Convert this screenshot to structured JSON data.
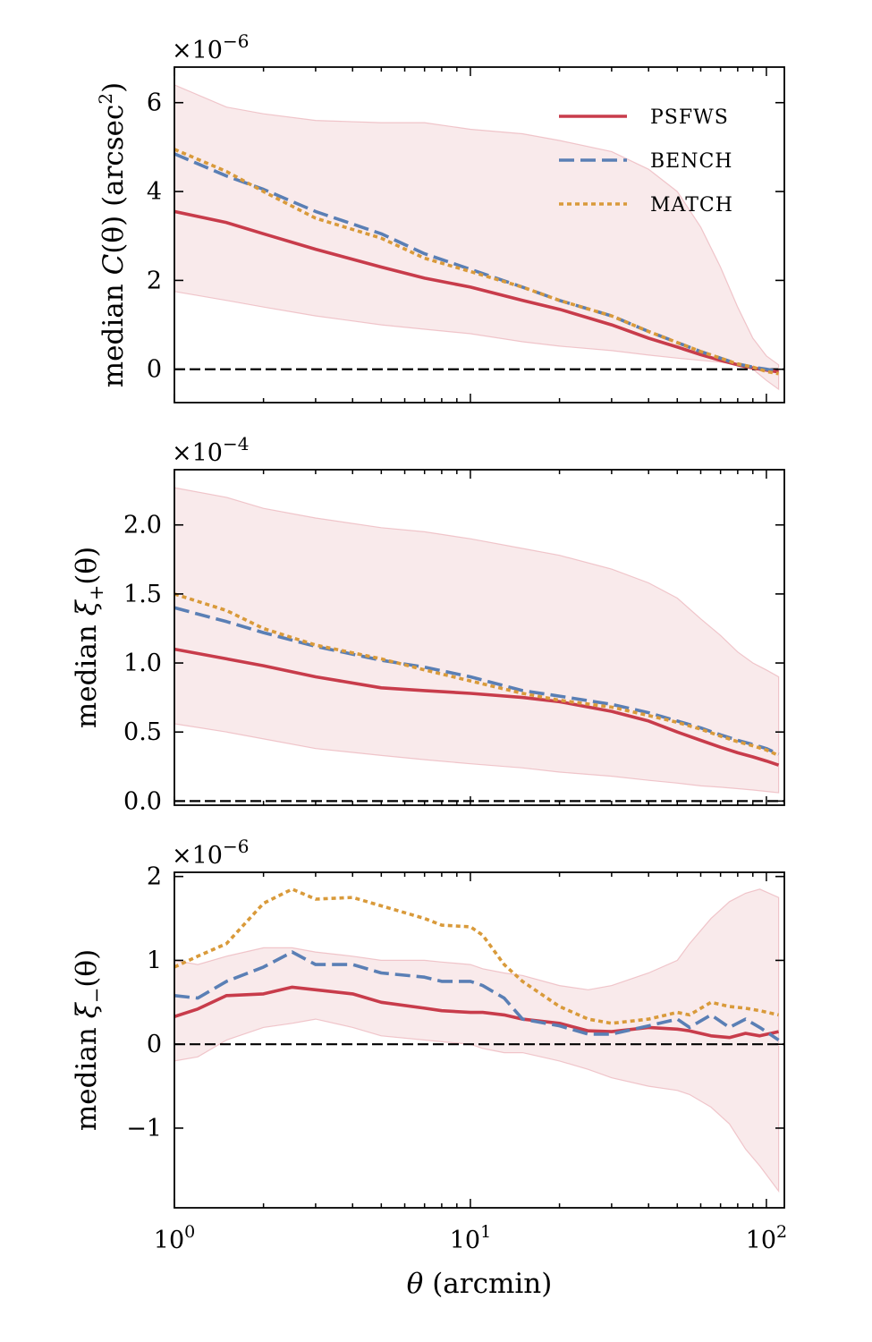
{
  "chart_data": [
    {
      "type": "line",
      "ylabel_parts": [
        "median ",
        "C",
        "(θ) (arcsec",
        "2",
        ")"
      ],
      "multiplier": {
        "base": "×10",
        "exp": "−6"
      },
      "ylim": [
        -0.75,
        6.8
      ],
      "yticks": [
        0,
        2,
        4,
        6
      ],
      "ytick_labels": [
        "0",
        "2",
        "4",
        "6"
      ],
      "legend": {
        "position": "top-right",
        "entries": [
          "PSFWS",
          "BENCH",
          "MATCH"
        ]
      },
      "x": [
        1.0,
        1.5,
        2.0,
        3.0,
        5.0,
        7.0,
        10.0,
        15.0,
        20.0,
        30.0,
        40.0,
        50.0,
        60.0,
        70.0,
        80.0,
        90.0,
        100.0,
        110.0
      ],
      "band": {
        "upper": [
          6.4,
          5.9,
          5.75,
          5.6,
          5.55,
          5.55,
          5.4,
          5.3,
          5.15,
          4.9,
          4.5,
          4.0,
          3.2,
          2.3,
          1.4,
          0.7,
          0.3,
          0.1
        ],
        "lower": [
          1.75,
          1.55,
          1.4,
          1.2,
          1.0,
          0.9,
          0.8,
          0.62,
          0.52,
          0.42,
          0.32,
          0.25,
          0.2,
          0.16,
          0.1,
          0.0,
          -0.25,
          -0.45
        ]
      },
      "series": [
        {
          "name": "PSFWS",
          "color": "#c83c4b",
          "dash": "solid",
          "values": [
            3.55,
            3.3,
            3.05,
            2.7,
            2.3,
            2.05,
            1.85,
            1.55,
            1.35,
            1.0,
            0.7,
            0.5,
            0.33,
            0.2,
            0.1,
            0.03,
            -0.02,
            -0.06
          ]
        },
        {
          "name": "BENCH",
          "color": "#5a7fb5",
          "dash": "dashed",
          "values": [
            4.85,
            4.35,
            4.05,
            3.55,
            3.05,
            2.6,
            2.25,
            1.85,
            1.55,
            1.2,
            0.85,
            0.6,
            0.4,
            0.25,
            0.12,
            0.05,
            0.0,
            -0.05
          ]
        },
        {
          "name": "MATCH",
          "color": "#d99a3a",
          "dash": "dotted",
          "values": [
            4.95,
            4.45,
            4.0,
            3.4,
            2.95,
            2.5,
            2.2,
            1.85,
            1.55,
            1.2,
            0.85,
            0.6,
            0.4,
            0.25,
            0.12,
            0.05,
            -0.05,
            -0.1
          ]
        }
      ]
    },
    {
      "type": "line",
      "ylabel_parts": [
        "median ",
        "ξ",
        "+",
        "(θ)"
      ],
      "multiplier": {
        "base": "×10",
        "exp": "−4"
      },
      "ylim": [
        -0.03,
        2.4
      ],
      "yticks": [
        0,
        0.5,
        1.0,
        1.5,
        2.0
      ],
      "ytick_labels": [
        "0.0",
        "0.5",
        "1.0",
        "1.5",
        "2.0"
      ],
      "x": [
        1.0,
        1.5,
        2.0,
        3.0,
        5.0,
        7.0,
        10.0,
        15.0,
        20.0,
        30.0,
        40.0,
        50.0,
        60.0,
        70.0,
        80.0,
        90.0,
        100.0,
        110.0
      ],
      "band": {
        "upper": [
          2.27,
          2.2,
          2.12,
          2.05,
          1.98,
          1.95,
          1.9,
          1.83,
          1.78,
          1.68,
          1.58,
          1.47,
          1.32,
          1.2,
          1.08,
          1.0,
          0.95,
          0.9
        ],
        "lower": [
          0.56,
          0.5,
          0.45,
          0.38,
          0.33,
          0.3,
          0.27,
          0.24,
          0.21,
          0.18,
          0.15,
          0.13,
          0.11,
          0.1,
          0.09,
          0.08,
          0.07,
          0.06
        ]
      },
      "series": [
        {
          "name": "PSFWS",
          "color": "#c83c4b",
          "dash": "solid",
          "values": [
            1.1,
            1.03,
            0.98,
            0.9,
            0.82,
            0.8,
            0.78,
            0.75,
            0.72,
            0.65,
            0.58,
            0.5,
            0.44,
            0.39,
            0.35,
            0.32,
            0.29,
            0.26
          ]
        },
        {
          "name": "BENCH",
          "color": "#5a7fb5",
          "dash": "dashed",
          "values": [
            1.4,
            1.3,
            1.22,
            1.12,
            1.02,
            0.97,
            0.9,
            0.8,
            0.76,
            0.7,
            0.64,
            0.58,
            0.53,
            0.48,
            0.44,
            0.41,
            0.38,
            0.34
          ]
        },
        {
          "name": "MATCH",
          "color": "#d99a3a",
          "dash": "dotted",
          "values": [
            1.5,
            1.38,
            1.25,
            1.13,
            1.03,
            0.95,
            0.87,
            0.78,
            0.73,
            0.68,
            0.62,
            0.57,
            0.52,
            0.47,
            0.43,
            0.4,
            0.37,
            0.33
          ]
        }
      ]
    },
    {
      "type": "line",
      "ylabel_parts": [
        "median ",
        "ξ",
        "−",
        "(θ)"
      ],
      "multiplier": {
        "base": "×10",
        "exp": "−6"
      },
      "ylim": [
        -1.95,
        2.05
      ],
      "yticks": [
        -1,
        0,
        1,
        2
      ],
      "ytick_labels": [
        "−1",
        "0",
        "1",
        "2"
      ],
      "xlabel_parts": [
        "θ",
        " (arcmin)"
      ],
      "xticks": [
        1,
        10,
        100
      ],
      "xtick_labels": [
        {
          "base": "10",
          "exp": "0"
        },
        {
          "base": "10",
          "exp": "1"
        },
        {
          "base": "10",
          "exp": "2"
        }
      ],
      "x": [
        1.0,
        1.2,
        1.5,
        2.0,
        2.5,
        3.0,
        4.0,
        5.0,
        7.0,
        8.0,
        10.0,
        11.0,
        13.0,
        15.0,
        20.0,
        25.0,
        30.0,
        40.0,
        50.0,
        55.0,
        65.0,
        75.0,
        85.0,
        95.0,
        110.0
      ],
      "band": {
        "upper": [
          1.0,
          0.95,
          1.05,
          1.15,
          1.15,
          1.1,
          1.05,
          1.0,
          1.0,
          0.98,
          0.95,
          0.9,
          0.85,
          0.82,
          0.7,
          0.65,
          0.7,
          0.85,
          1.0,
          1.2,
          1.5,
          1.7,
          1.8,
          1.85,
          1.75
        ],
        "lower": [
          -0.2,
          -0.15,
          0.05,
          0.2,
          0.25,
          0.3,
          0.2,
          0.1,
          0.05,
          0.03,
          0.0,
          -0.05,
          -0.1,
          -0.1,
          -0.2,
          -0.3,
          -0.4,
          -0.5,
          -0.55,
          -0.6,
          -0.75,
          -0.95,
          -1.25,
          -1.45,
          -1.75
        ]
      },
      "series": [
        {
          "name": "PSFWS",
          "color": "#c83c4b",
          "dash": "solid",
          "values": [
            0.33,
            0.42,
            0.58,
            0.6,
            0.68,
            0.65,
            0.6,
            0.5,
            0.43,
            0.4,
            0.38,
            0.38,
            0.35,
            0.3,
            0.25,
            0.16,
            0.15,
            0.2,
            0.18,
            0.16,
            0.1,
            0.08,
            0.13,
            0.1,
            0.15
          ]
        },
        {
          "name": "BENCH",
          "color": "#5a7fb5",
          "dash": "dashed",
          "values": [
            0.58,
            0.55,
            0.75,
            0.92,
            1.1,
            0.95,
            0.95,
            0.85,
            0.8,
            0.75,
            0.75,
            0.7,
            0.55,
            0.3,
            0.22,
            0.12,
            0.12,
            0.22,
            0.3,
            0.2,
            0.35,
            0.2,
            0.3,
            0.2,
            0.05
          ]
        },
        {
          "name": "MATCH",
          "color": "#d99a3a",
          "dash": "dotted",
          "values": [
            0.92,
            1.05,
            1.2,
            1.68,
            1.85,
            1.73,
            1.75,
            1.65,
            1.5,
            1.42,
            1.4,
            1.3,
            0.95,
            0.75,
            0.45,
            0.3,
            0.25,
            0.3,
            0.38,
            0.35,
            0.5,
            0.45,
            0.43,
            0.4,
            0.35
          ]
        }
      ]
    }
  ]
}
